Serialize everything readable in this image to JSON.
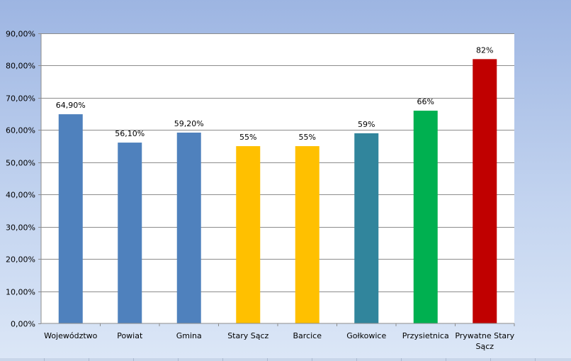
{
  "chart_data": {
    "type": "bar",
    "title": "",
    "xlabel": "",
    "ylabel": "",
    "ylim": [
      0,
      90
    ],
    "yticks": [
      0,
      10,
      20,
      30,
      40,
      50,
      60,
      70,
      80,
      90
    ],
    "ytick_labels": [
      "0,00%",
      "10,00%",
      "20,00%",
      "30,00%",
      "40,00%",
      "50,00%",
      "60,00%",
      "70,00%",
      "80,00%",
      "90,00%"
    ],
    "grid": true,
    "legend": "none",
    "categories": [
      "Województwo",
      "Powiat",
      "Gmina",
      "Stary Sącz",
      "Barcice",
      "Gołkowice",
      "Przysietnica",
      "Prywatne Stary Sącz"
    ],
    "values": [
      64.9,
      56.1,
      59.2,
      55,
      55,
      59,
      66,
      82
    ],
    "data_labels": [
      "64,90%",
      "56,10%",
      "59,20%",
      "55%",
      "55%",
      "59%",
      "66%",
      "82%"
    ],
    "colors": [
      "#4f81bd",
      "#4f81bd",
      "#4f81bd",
      "#ffc000",
      "#ffc000",
      "#31859c",
      "#00b050",
      "#c00000"
    ]
  }
}
